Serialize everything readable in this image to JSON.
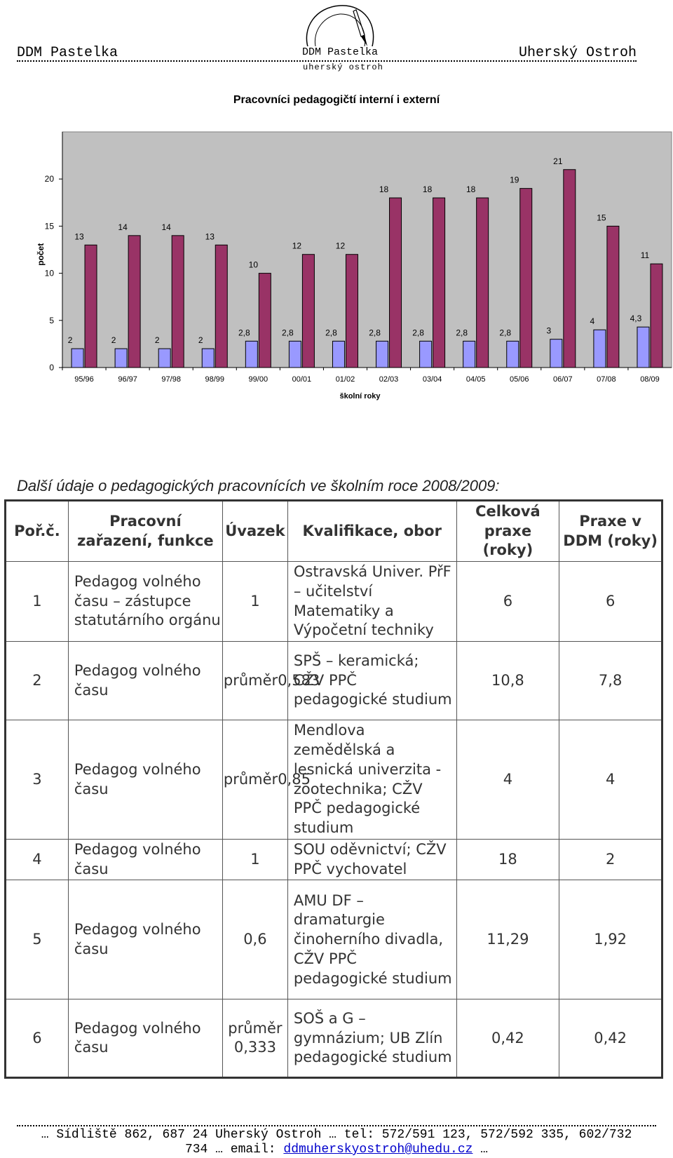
{
  "header": {
    "left": "DDM Pastelka",
    "right": "Uherský Ostroh",
    "logo_name": "DDM Pastelka",
    "logo_sub": "uherský ostroh"
  },
  "chart_data": {
    "type": "bar",
    "title": "Pracovníci pedagogičtí interní i externí",
    "xlabel": "školní roky",
    "ylabel": "počet",
    "ylim": [
      0,
      25
    ],
    "yticks": [
      "0",
      "5",
      "10",
      "15",
      "20"
    ],
    "grid": false,
    "categories": [
      "95/96",
      "96/97",
      "97/98",
      "98/99",
      "99/00",
      "00/01",
      "01/02",
      "02/03",
      "03/04",
      "04/05",
      "05/06",
      "06/07",
      "07/08",
      "08/09"
    ],
    "series": [
      {
        "values": [
          2,
          2,
          2,
          2,
          2.8,
          2.8,
          2.8,
          2.8,
          2.8,
          2.8,
          2.8,
          3,
          4,
          4.3
        ],
        "labels": [
          "2",
          "2",
          "2",
          "2",
          "2,8",
          "2,8",
          "2,8",
          "2,8",
          "2,8",
          "2,8",
          "2,8",
          "3",
          "4",
          "4,3"
        ],
        "color": "#9999ff"
      },
      {
        "values": [
          13,
          14,
          14,
          13,
          10,
          12,
          12,
          18,
          18,
          18,
          19,
          21,
          15,
          11
        ],
        "labels": [
          "13",
          "14",
          "14",
          "13",
          "10",
          "12",
          "12",
          "18",
          "18",
          "18",
          "19",
          "21",
          "15",
          "11"
        ],
        "color": "#993366"
      }
    ],
    "colors": {
      "plot_bg": "#c0c0c0",
      "axis": "#000000"
    }
  },
  "section_heading": "Další údaje o pedagogických pracovnících ve školním roce 2008/2009:",
  "table": {
    "headers": {
      "num": "Poř.č.",
      "role": "Pracovní zařazení, funkce",
      "load": "Úvazek",
      "qual": "Kvalifikace, obor",
      "total": "Celková praxe (roky)",
      "ddm": "Praxe v DDM (roky)"
    },
    "rows": [
      {
        "num": "1",
        "role": "Pedagog volného času – zástupce statutárního orgánu",
        "load": "1",
        "qual": "Ostravská Univer. PřF – učitelství Matematiky a Výpočetní techniky",
        "total": "6",
        "ddm": "6"
      },
      {
        "num": "2",
        "role": "Pedagog volného času",
        "load": "průměr0,583",
        "qual": "SPŠ – keramická; CŽV PPČ pedagogické studium",
        "total": "10,8",
        "ddm": "7,8"
      },
      {
        "num": "3",
        "role": "Pedagog volného času",
        "load": "průměr0,85",
        "qual": "Mendlova zemědělská a lesnická univerzita - zootechnika; CŽV PPČ pedagogické studium",
        "total": "4",
        "ddm": "4"
      },
      {
        "num": "4",
        "role": "Pedagog volného času",
        "load": "1",
        "qual": "SOU oděvnictví; CŽV PPČ vychovatel",
        "total": "18",
        "ddm": "2"
      },
      {
        "num": "5",
        "role": "Pedagog volného času",
        "load": "0,6",
        "qual": "AMU DF – dramaturgie činoherního divadla, CŽV PPČ pedagogické studium",
        "total": "11,29",
        "ddm": "1,92"
      },
      {
        "num": "6",
        "role": "Pedagog volného času",
        "load": "průměr 0,333",
        "qual": "SOŠ a G – gymnázium; UB Zlín pedagogické studium",
        "total": "0,42",
        "ddm": "0,42"
      }
    ]
  },
  "footer": {
    "line1": "… Sídliště 862, 687 24  Uherský Ostroh … tel: 572/591 123, 572/592 335, 602/732",
    "line2_prefix": "734 … email: ",
    "email": "ddmuherskyostroh@uhedu.cz",
    "line2_suffix": " …"
  }
}
